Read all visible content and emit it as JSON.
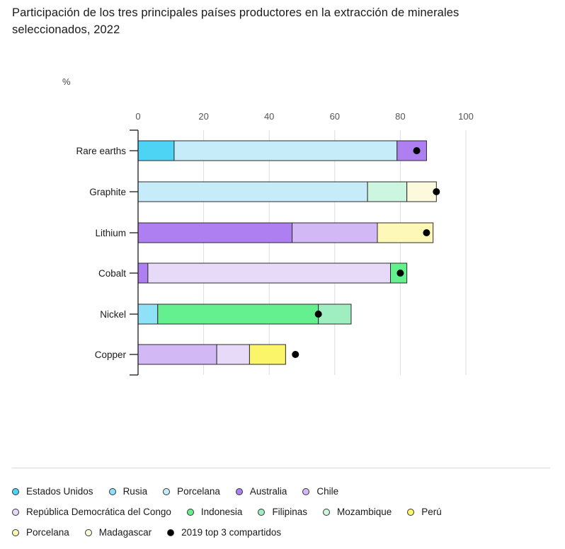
{
  "title": "Participación de los tres principales países productores en la extracción de minerales seleccionados, 2022",
  "unit_label": "%",
  "chart_data": {
    "type": "bar",
    "orientation": "horizontal",
    "stacked": true,
    "categories": [
      "Rare earths",
      "Graphite",
      "Lithium",
      "Cobalt",
      "Nickel",
      "Copper"
    ],
    "xlim": [
      0,
      100
    ],
    "xticks": [
      0,
      20,
      40,
      60,
      80,
      100
    ],
    "grid": true,
    "segments": [
      [
        {
          "series": "Estados Unidos",
          "value": 11
        },
        {
          "series": "Porcelana",
          "value": 68
        },
        {
          "series": "Australia",
          "value": 9
        }
      ],
      [
        {
          "series": "Porcelana",
          "value": 70
        },
        {
          "series": "Mozambique",
          "value": 12
        },
        {
          "series": "Madagascar",
          "value": 9
        }
      ],
      [
        {
          "series": "Australia",
          "value": 47
        },
        {
          "series": "Chile",
          "value": 26
        },
        {
          "series": "Porcelana (2)",
          "value": 17
        }
      ],
      [
        {
          "series": "Australia",
          "value": 3
        },
        {
          "series": "República Democrática del Congo",
          "value": 74
        },
        {
          "series": "Indonesia",
          "value": 5
        }
      ],
      [
        {
          "series": "Rusia",
          "value": 6
        },
        {
          "series": "Indonesia",
          "value": 49
        },
        {
          "series": "Filipinas",
          "value": 10
        }
      ],
      [
        {
          "series": "Chile",
          "value": 24
        },
        {
          "series": "República Democrática del Congo",
          "value": 10
        },
        {
          "series": "Perú",
          "value": 11
        }
      ]
    ],
    "dots_2019": [
      85,
      91,
      88,
      80,
      55,
      48
    ],
    "legend": [
      {
        "name": "Estados Unidos",
        "color": "#4dd4f5"
      },
      {
        "name": "Rusia",
        "color": "#8fe1f7"
      },
      {
        "name": "Porcelana",
        "color": "#c7ecf9"
      },
      {
        "name": "Australia",
        "color": "#ad7ff0"
      },
      {
        "name": "Chile",
        "color": "#d2b9f6"
      },
      {
        "name": "República Democrática del Congo",
        "color": "#e6daf8"
      },
      {
        "name": "Indonesia",
        "color": "#64f08f"
      },
      {
        "name": "Filipinas",
        "color": "#9eeec1"
      },
      {
        "name": "Mozambique",
        "color": "#cdf6e0"
      },
      {
        "name": "Perú",
        "color": "#fbf56a"
      },
      {
        "name": "Porcelana",
        "color": "#fdf8b8"
      },
      {
        "name": "Madagascar",
        "color": "#fdf9dd"
      },
      {
        "name": "2019 top 3 compartidos",
        "color": "#000000"
      }
    ]
  }
}
